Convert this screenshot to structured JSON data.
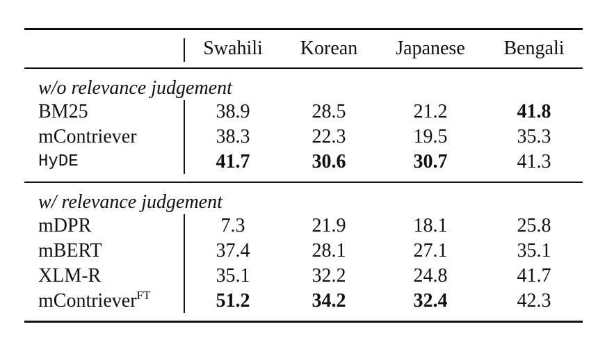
{
  "table": {
    "columns": [
      "Swahili",
      "Korean",
      "Japanese",
      "Bengali"
    ],
    "groups": [
      {
        "title": "w/o relevance judgement",
        "rows": [
          {
            "name": "BM25",
            "values": [
              38.9,
              28.5,
              21.2,
              41.8
            ],
            "bold": [
              3
            ]
          },
          {
            "name": "mContriever",
            "values": [
              38.3,
              22.3,
              19.5,
              35.3
            ],
            "bold": []
          },
          {
            "name": "HyDE",
            "monospace": true,
            "values": [
              41.7,
              30.6,
              30.7,
              41.3
            ],
            "bold": [
              0,
              1,
              2
            ]
          }
        ]
      },
      {
        "title": "w/ relevance judgement",
        "rows": [
          {
            "name": "mDPR",
            "values": [
              7.3,
              21.9,
              18.1,
              25.8
            ],
            "bold": []
          },
          {
            "name": "mBERT",
            "values": [
              37.4,
              28.1,
              27.1,
              35.1
            ],
            "bold": []
          },
          {
            "name": "XLM-R",
            "values": [
              35.1,
              32.2,
              24.8,
              41.7
            ],
            "bold": []
          },
          {
            "name": "mContriever",
            "superscript": "FT",
            "values": [
              51.2,
              34.2,
              32.4,
              42.3
            ],
            "bold": [
              0,
              1,
              2
            ]
          }
        ]
      }
    ]
  }
}
